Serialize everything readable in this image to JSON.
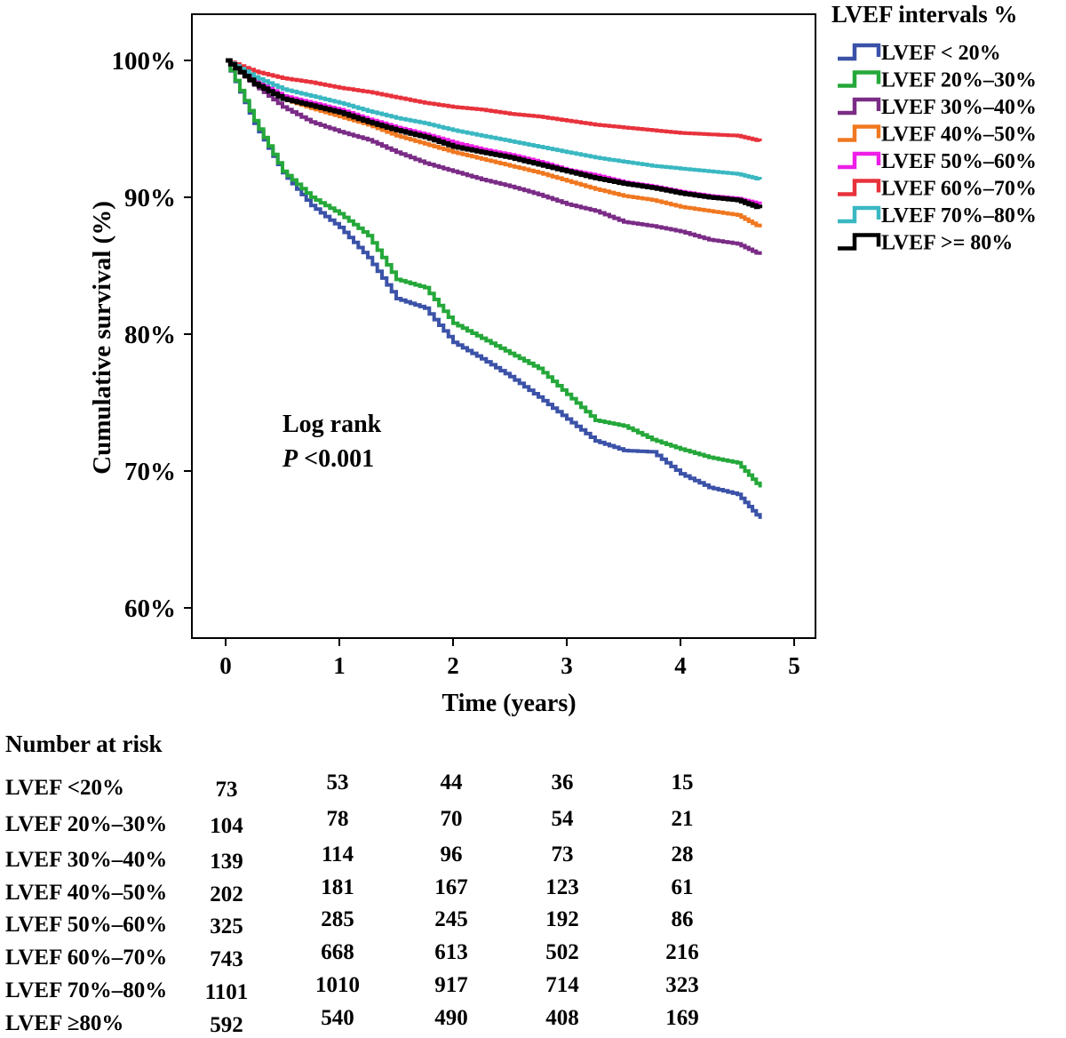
{
  "chart_data": {
    "type": "line",
    "subtype": "kaplan-meier step",
    "title": "",
    "xlabel": "Time (years)",
    "ylabel": "Cumulative survival (%)",
    "xlim": [
      0,
      5
    ],
    "ylim": [
      60,
      100
    ],
    "x_ticks": [
      "0",
      "1",
      "2",
      "3",
      "4",
      "5"
    ],
    "y_ticks": [
      "60%",
      "70%",
      "80%",
      "90%",
      "100%"
    ],
    "legend_title": "LVEF intervals %",
    "legend_position": "outside-right-top",
    "annotation_line1": "Log rank",
    "annotation_p": "P",
    "annotation_value": " <0.001",
    "grid": false,
    "series": [
      {
        "name": "LVEF < 20%",
        "color": "#3b52a8",
        "x": [
          0,
          0.25,
          0.5,
          0.75,
          1,
          1.25,
          1.5,
          1.75,
          2,
          2.25,
          2.5,
          2.75,
          3,
          3.25,
          3.5,
          3.75,
          4,
          4.25,
          4.5,
          4.7
        ],
        "y": [
          100,
          95.4,
          91.8,
          89.4,
          87.8,
          85.6,
          82.6,
          81.9,
          79.4,
          78.2,
          76.9,
          75.4,
          73.8,
          72.2,
          71.5,
          71.4,
          69.8,
          68.8,
          68.3,
          66.5
        ]
      },
      {
        "name": "LVEF 20%–30%",
        "color": "#25a83a",
        "x": [
          0,
          0.25,
          0.5,
          0.75,
          1,
          1.25,
          1.5,
          1.75,
          2,
          2.25,
          2.5,
          2.75,
          3,
          3.25,
          3.5,
          3.75,
          4,
          4.25,
          4.5,
          4.7
        ],
        "y": [
          100,
          95.6,
          91.9,
          90.0,
          88.8,
          87.2,
          84.0,
          83.4,
          80.8,
          79.7,
          78.6,
          77.5,
          75.6,
          73.7,
          73.3,
          72.3,
          71.6,
          71.0,
          70.6,
          68.8
        ]
      },
      {
        "name": "LVEF 30%–40%",
        "color": "#7a2c86",
        "x": [
          0,
          0.25,
          0.5,
          0.75,
          1,
          1.25,
          1.5,
          1.75,
          2,
          2.25,
          2.5,
          2.75,
          3,
          3.25,
          3.5,
          3.75,
          4,
          4.25,
          4.5,
          4.7
        ],
        "y": [
          100,
          98.2,
          96.6,
          95.5,
          94.8,
          94.2,
          93.3,
          92.5,
          91.9,
          91.3,
          90.8,
          90.2,
          89.5,
          89.0,
          88.2,
          87.9,
          87.5,
          86.9,
          86.6,
          85.8
        ]
      },
      {
        "name": "LVEF 40%–50%",
        "color": "#f07820",
        "x": [
          0,
          0.25,
          0.5,
          0.75,
          1,
          1.25,
          1.5,
          1.75,
          2,
          2.25,
          2.5,
          2.75,
          3,
          3.25,
          3.5,
          3.75,
          4,
          4.25,
          4.5,
          4.7
        ],
        "y": [
          100,
          98.3,
          97.2,
          96.5,
          95.9,
          95.3,
          94.5,
          93.9,
          93.3,
          92.8,
          92.3,
          91.8,
          91.2,
          90.6,
          90.1,
          89.8,
          89.3,
          89.0,
          88.7,
          87.8
        ]
      },
      {
        "name": "LVEF 50%–60%",
        "color": "#ee1ee8",
        "x": [
          0,
          0.25,
          0.5,
          0.75,
          1,
          1.25,
          1.5,
          1.75,
          2,
          2.25,
          2.5,
          2.75,
          3,
          3.25,
          3.5,
          3.75,
          4,
          4.25,
          4.5,
          4.7
        ],
        "y": [
          100,
          98.5,
          97.4,
          96.9,
          96.4,
          95.7,
          95.1,
          94.6,
          94.0,
          93.5,
          93.1,
          92.6,
          92.0,
          91.6,
          91.1,
          90.8,
          90.4,
          90.1,
          89.9,
          89.5
        ]
      },
      {
        "name": "LVEF 60%–70%",
        "color": "#e8323c",
        "x": [
          0,
          0.25,
          0.5,
          0.75,
          1,
          1.25,
          1.5,
          1.75,
          2,
          2.25,
          2.5,
          2.75,
          3,
          3.25,
          3.5,
          3.75,
          4,
          4.25,
          4.5,
          4.7
        ],
        "y": [
          100,
          99.2,
          98.7,
          98.4,
          98.0,
          97.7,
          97.3,
          96.9,
          96.6,
          96.4,
          96.1,
          95.9,
          95.6,
          95.3,
          95.1,
          94.9,
          94.7,
          94.6,
          94.5,
          94.1
        ]
      },
      {
        "name": "LVEF 70%–80%",
        "color": "#3ab8c2",
        "x": [
          0,
          0.25,
          0.5,
          0.75,
          1,
          1.25,
          1.5,
          1.75,
          2,
          2.25,
          2.5,
          2.75,
          3,
          3.25,
          3.5,
          3.75,
          4,
          4.25,
          4.5,
          4.7
        ],
        "y": [
          100,
          98.8,
          97.9,
          97.4,
          96.9,
          96.3,
          95.8,
          95.4,
          94.9,
          94.5,
          94.1,
          93.7,
          93.3,
          92.9,
          92.6,
          92.3,
          92.1,
          91.9,
          91.7,
          91.3
        ]
      },
      {
        "name": "LVEF >= 80%",
        "color": "#000000",
        "x": [
          0,
          0.25,
          0.5,
          0.75,
          1,
          1.25,
          1.5,
          1.75,
          2,
          2.25,
          2.5,
          2.75,
          3,
          3.25,
          3.5,
          3.75,
          4,
          4.25,
          4.5,
          4.7
        ],
        "y": [
          100,
          98.3,
          97.2,
          96.7,
          96.2,
          95.5,
          94.9,
          94.4,
          93.7,
          93.3,
          92.9,
          92.4,
          91.9,
          91.4,
          91.0,
          90.7,
          90.3,
          90.0,
          89.8,
          89.2
        ]
      }
    ]
  },
  "risk_table": {
    "title": "Number at risk",
    "rows": [
      {
        "label": "LVEF <20%",
        "values": [
          "73",
          "53",
          "44",
          "36",
          "15"
        ]
      },
      {
        "label": "LVEF 20%–30%",
        "values": [
          "104",
          "78",
          "70",
          "54",
          "21"
        ]
      },
      {
        "label": "LVEF 30%–40%",
        "values": [
          "139",
          "114",
          "96",
          "73",
          "28"
        ]
      },
      {
        "label": "LVEF 40%–50%",
        "values": [
          "202",
          "181",
          "167",
          "123",
          "61"
        ]
      },
      {
        "label": "LVEF 50%–60%",
        "values": [
          "325",
          "285",
          "245",
          "192",
          "86"
        ]
      },
      {
        "label": "LVEF 60%–70%",
        "values": [
          "743",
          "668",
          "613",
          "502",
          "216"
        ]
      },
      {
        "label": "LVEF 70%–80%",
        "values": [
          "1101",
          "1010",
          "917",
          "714",
          "323"
        ]
      },
      {
        "label": "LVEF ≥80%",
        "values": [
          "592",
          "540",
          "490",
          "408",
          "169"
        ]
      }
    ]
  }
}
